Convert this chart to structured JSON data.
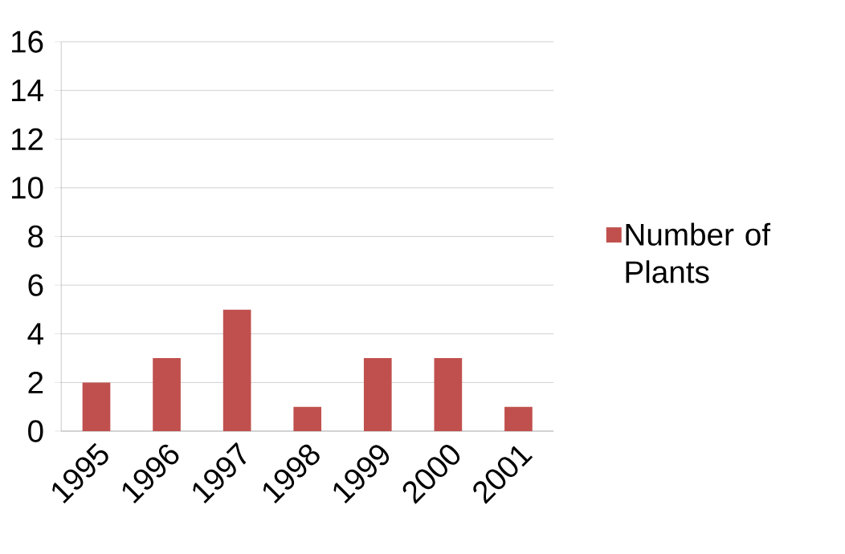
{
  "chart_data": {
    "type": "bar",
    "categories": [
      "1995",
      "1996",
      "1997",
      "1998",
      "1999",
      "2000",
      "2001"
    ],
    "series": [
      {
        "name": "Number of Plants",
        "color": "#c0504d",
        "values": [
          2,
          3,
          5,
          1,
          3,
          3,
          1
        ]
      }
    ],
    "ylim": [
      0,
      16
    ],
    "yticks": [
      0,
      2,
      4,
      6,
      8,
      10,
      12,
      14,
      16
    ],
    "grid": "y",
    "legend": "right"
  }
}
